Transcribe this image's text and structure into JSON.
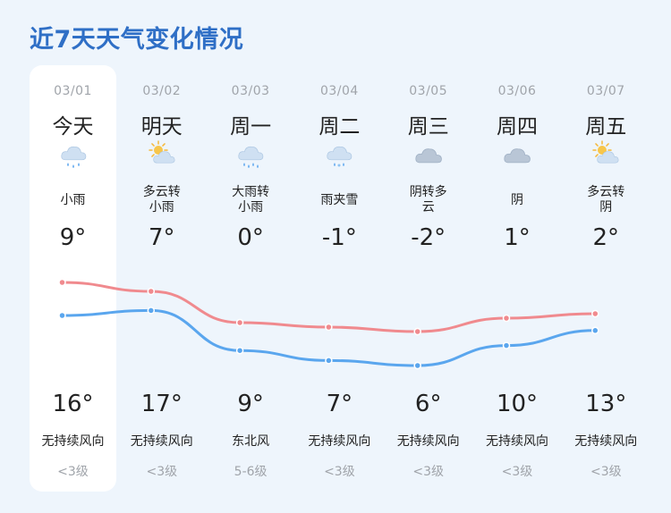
{
  "title": "近7天天气变化情况",
  "colors": {
    "title": "#2f6fc6",
    "high_line": "#f08a8e",
    "low_line": "#5aa6ee",
    "muted": "#a0a4aa"
  },
  "days": [
    {
      "date": "03/01",
      "name": "今天",
      "icon": "rain-cloud-icon",
      "cond1": "小雨",
      "cond2": "",
      "high": "9°",
      "low": "16°",
      "wind": "无持续风向",
      "level": "<3级"
    },
    {
      "date": "03/02",
      "name": "明天",
      "icon": "partly-cloudy-icon",
      "cond1": "多云转",
      "cond2": "小雨",
      "high": "7°",
      "low": "17°",
      "wind": "无持续风向",
      "level": "<3级"
    },
    {
      "date": "03/03",
      "name": "周一",
      "icon": "heavy-rain-cloud-icon",
      "cond1": "大雨转",
      "cond2": "小雨",
      "high": "0°",
      "low": "9°",
      "wind": "东北风",
      "level": "5-6级"
    },
    {
      "date": "03/04",
      "name": "周二",
      "icon": "sleet-cloud-icon",
      "cond1": "雨夹雪",
      "cond2": "",
      "high": "-1°",
      "low": "7°",
      "wind": "无持续风向",
      "level": "<3级"
    },
    {
      "date": "03/05",
      "name": "周三",
      "icon": "overcast-cloud-icon",
      "cond1": "阴转多",
      "cond2": "云",
      "high": "-2°",
      "low": "6°",
      "wind": "无持续风向",
      "level": "<3级"
    },
    {
      "date": "03/06",
      "name": "周四",
      "icon": "overcast-cloud-icon",
      "cond1": "阴",
      "cond2": "",
      "high": "1°",
      "low": "10°",
      "wind": "无持续风向",
      "level": "<3级"
    },
    {
      "date": "03/07",
      "name": "周五",
      "icon": "partly-cloudy-icon",
      "cond1": "多云转",
      "cond2": "阴",
      "high": "2°",
      "low": "13°",
      "wind": "无持续风向",
      "level": "<3级"
    }
  ],
  "chart_data": {
    "type": "line",
    "categories": [
      "03/01",
      "03/02",
      "03/03",
      "03/04",
      "03/05",
      "03/06",
      "03/07"
    ],
    "series": [
      {
        "values": [
          9,
          7,
          0,
          -1,
          -2,
          1,
          2
        ]
      },
      {
        "values": [
          16,
          17,
          9,
          7,
          6,
          10,
          13
        ]
      }
    ]
  }
}
